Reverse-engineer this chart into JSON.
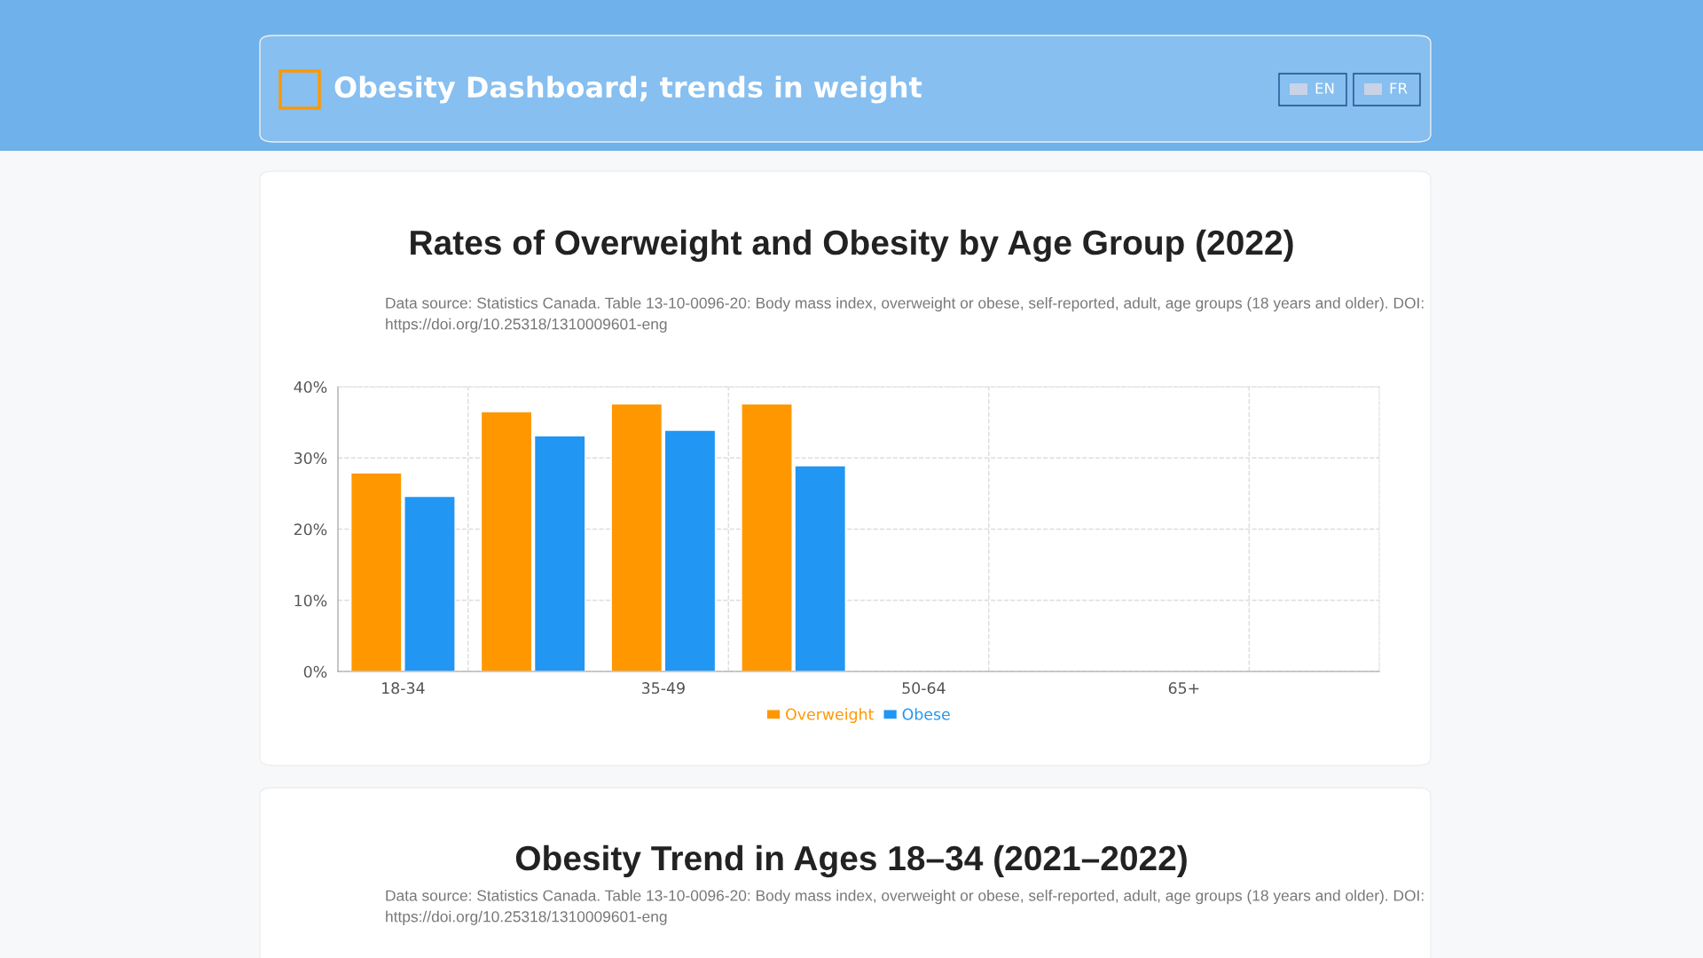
{
  "chart_data": [
    {
      "type": "other",
      "title": "Obesity Dashboard; trends in weight",
      "annotations": [
        "EN",
        "FR"
      ]
    },
    {
      "type": "bar",
      "title": "Rates of Overweight and Obesity by Age Group (2022)",
      "subtitle": "Data source: Statistics Canada. Table 13-10-0096-20: Body mass index, overweight or obese, self-reported, adult, age groups (18 years and older). DOI: https://doi.org/10.25318/1310009601-eng",
      "categories": [
        "18-34",
        null,
        "35-49",
        null,
        "50-64",
        null,
        "65+",
        null
      ],
      "series": [
        {
          "name": "Overweight",
          "color": "#ff9800",
          "values": [
            27.9,
            36.5,
            37.6,
            37.6,
            null,
            null,
            null,
            null
          ]
        },
        {
          "name": "Obese",
          "color": "#2196f3",
          "values": [
            24.6,
            33.1,
            33.9,
            28.9,
            null,
            null,
            null,
            null
          ]
        }
      ],
      "ylim": [
        0,
        40
      ],
      "yticks": [
        {
          "value": 0,
          "label": "0%"
        },
        {
          "value": 10,
          "label": "10%"
        },
        {
          "value": 20,
          "label": "20%"
        },
        {
          "value": 30,
          "label": "30%"
        },
        {
          "value": 40,
          "label": "40%"
        }
      ],
      "grid": true,
      "legend": "bottom"
    },
    {
      "type": "other",
      "title": "Obesity Trend in Ages 18–34 (2021–2022)",
      "annotations": [
        "Data source: Statistics Canada. Table 13-10-0096-20: Body mass index, overweight or obese, self-reported, adult, age groups (18 years and older). DOI: https://doi.org/10.25318/1310009601-eng"
      ]
    }
  ]
}
